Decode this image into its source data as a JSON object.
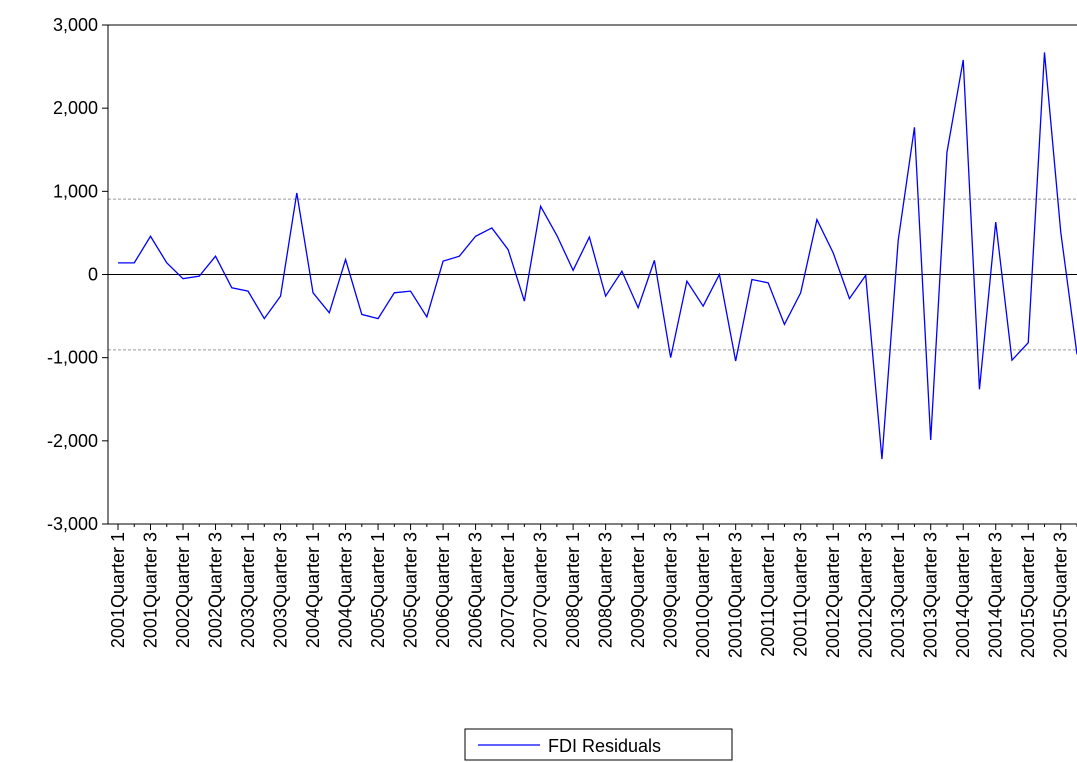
{
  "chart_data": {
    "type": "line",
    "categories": [
      "2001Quarter 1",
      null,
      "2001Quarter 3",
      null,
      "2002Quarter 1",
      null,
      "2002Quarter 3",
      null,
      "2003Quarter 1",
      null,
      "2003Quarter 3",
      null,
      "2004Quarter 1",
      null,
      "2004Quarter 3",
      null,
      "2005Quarter 1",
      null,
      "2005Quarter 3",
      null,
      "2006Quarter 1",
      null,
      "2006Quarter 3",
      null,
      "2007Quarter 1",
      null,
      "2007Quarter 3",
      null,
      "2008Quarter 1",
      null,
      "2008Quarter 3",
      null,
      "2009Quarter 1",
      null,
      "2009Quarter 3",
      null,
      "20010Quarter 1",
      null,
      "20010Quarter 3",
      null,
      "20011Quarter 1",
      null,
      "20011Quarter 3",
      null,
      "20012Quarter 1",
      null,
      "20012Quarter 3",
      null,
      "20013Quarter 1",
      null,
      "20013Quarter 3",
      null,
      "20014Quarter 1",
      null,
      "20014Quarter 3",
      null,
      "20015Quarter 1",
      null,
      "20015Quarter 3",
      null
    ],
    "series": [
      {
        "name": "FDI Residuals",
        "color": "#0000ff",
        "values": [
          140,
          140,
          460,
          140,
          -50,
          -20,
          220,
          -160,
          -200,
          -530,
          -260,
          980,
          -220,
          -460,
          180,
          -480,
          -530,
          -220,
          -200,
          -510,
          160,
          220,
          460,
          560,
          300,
          -320,
          820,
          470,
          50,
          450,
          -260,
          40,
          -400,
          170,
          -1000,
          -80,
          -380,
          0,
          -1040,
          -60,
          -100,
          -600,
          -220,
          660,
          260,
          -290,
          -10,
          -2220,
          410,
          1770,
          -1990,
          1470,
          2580,
          -1380,
          630,
          -1030,
          -820,
          2670,
          510,
          -960
        ]
      }
    ],
    "ylim": [
      -3000,
      3000
    ],
    "yticks": [
      {
        "value": -3000,
        "label": "-3,000"
      },
      {
        "value": -2000,
        "label": "-2,000"
      },
      {
        "value": -1000,
        "label": "-1,000"
      },
      0,
      {
        "value": 1000,
        "label": "1,000"
      },
      {
        "value": 2000,
        "label": "2,000"
      },
      {
        "value": 3000,
        "label": "3,000"
      }
    ],
    "reference_lines": [
      907,
      -907
    ],
    "zero_line": true,
    "legend": "bottom"
  }
}
